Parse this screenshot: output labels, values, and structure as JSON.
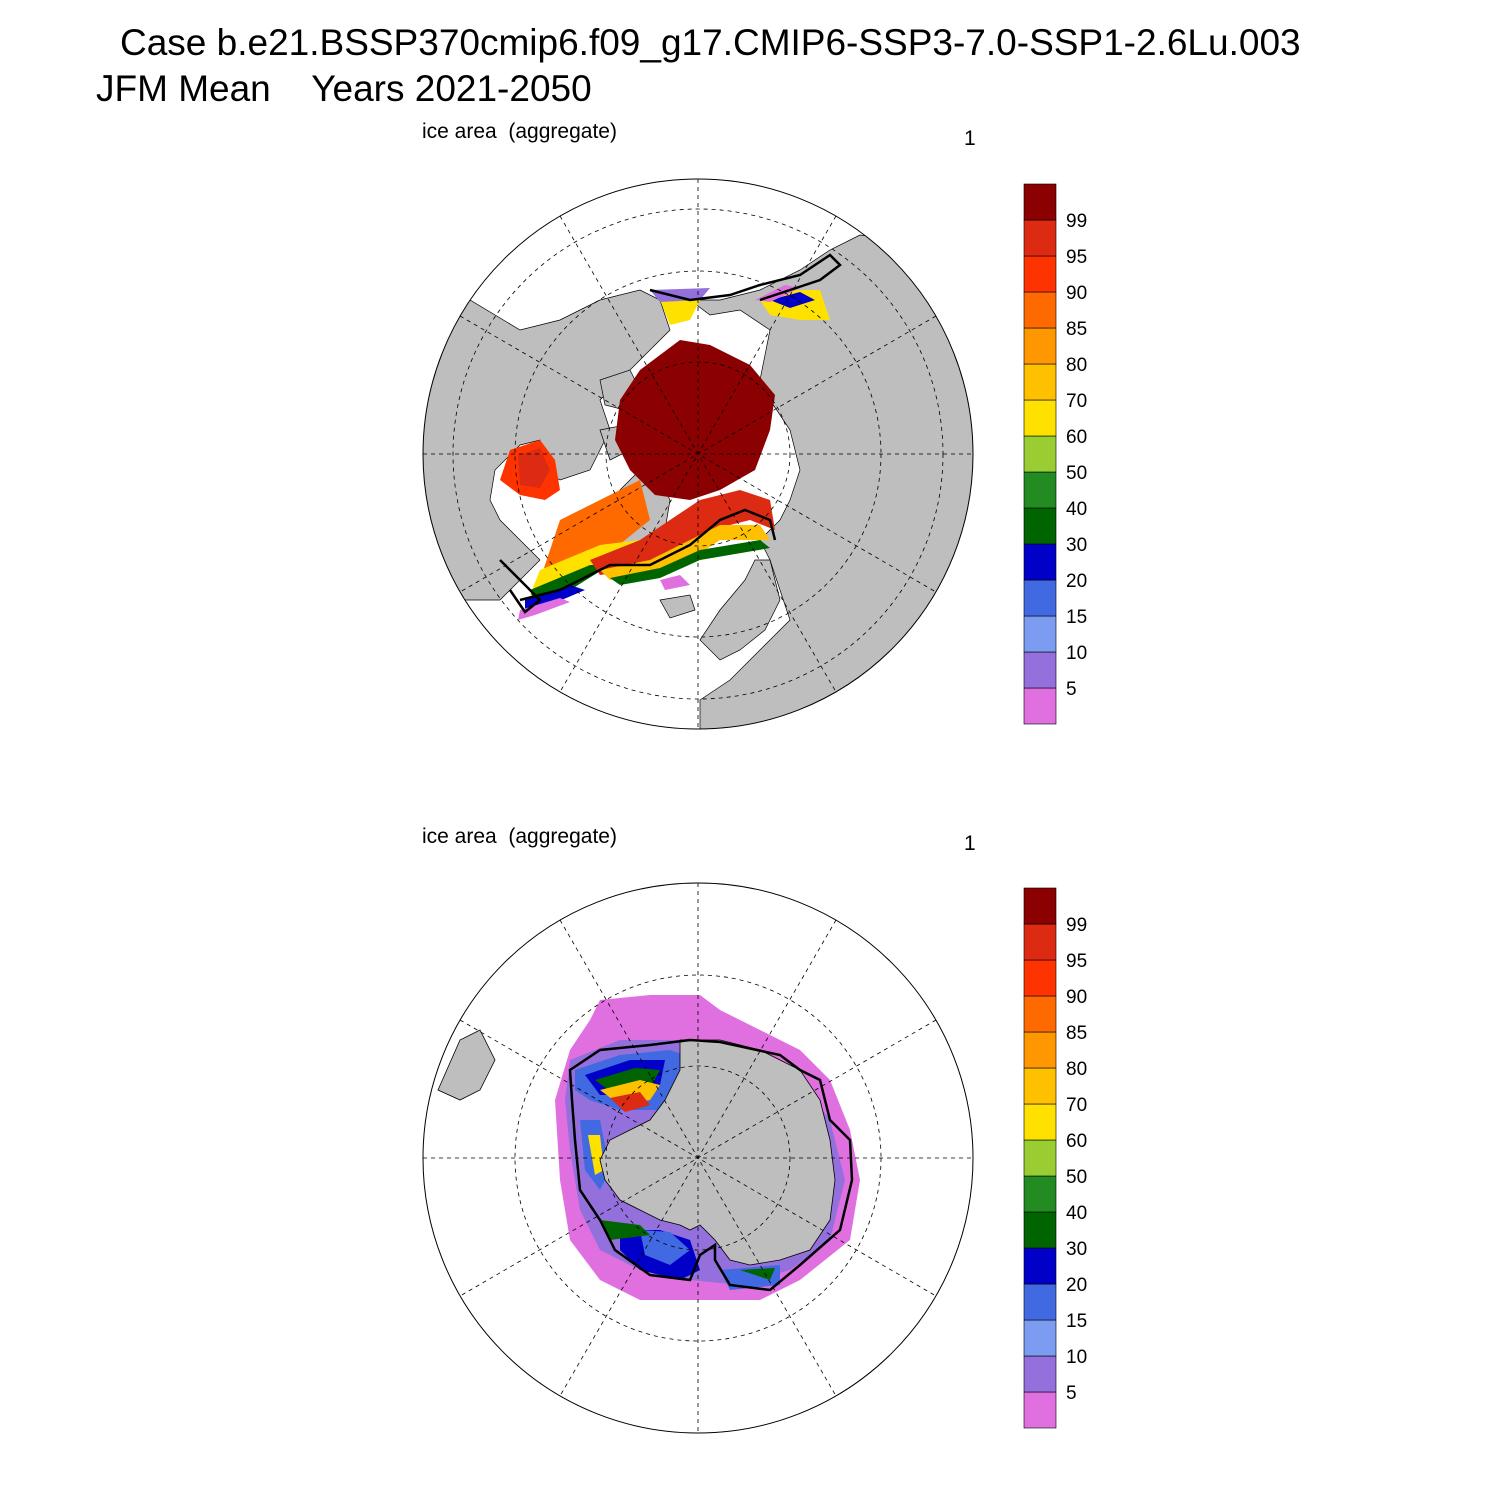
{
  "figure": {
    "title_case": "Case b.e21.BSSP370cmip6.f09_g17.CMIP6-SSP3-7.0-SSP1-2.6Lu.003",
    "title_period": "JFM Mean    Years 2021-2050"
  },
  "panels": [
    {
      "id": "north",
      "hemisphere": "Northern Hemisphere",
      "label": "ice area  (aggregate)",
      "number": "1"
    },
    {
      "id": "south",
      "hemisphere": "Southern Hemisphere",
      "label": "ice area  (aggregate)",
      "number": "1"
    }
  ],
  "colorbar": {
    "levels": [
      {
        "label": "5",
        "color": "#e070e0"
      },
      {
        "label": "10",
        "color": "#9370db"
      },
      {
        "label": "15",
        "color": "#7b9cf0"
      },
      {
        "label": "20",
        "color": "#4169e1"
      },
      {
        "label": "30",
        "color": "#0000c8"
      },
      {
        "label": "40",
        "color": "#006400"
      },
      {
        "label": "50",
        "color": "#228b22"
      },
      {
        "label": "60",
        "color": "#9acd32"
      },
      {
        "label": "70",
        "color": "#ffe100"
      },
      {
        "label": "80",
        "color": "#ffc000"
      },
      {
        "label": "85",
        "color": "#ff9800"
      },
      {
        "label": "90",
        "color": "#ff6a00"
      },
      {
        "label": "95",
        "color": "#ff3300"
      },
      {
        "label": "99",
        "color": "#dc2b12"
      },
      {
        "label": "",
        "color": "#8b0000"
      }
    ]
  },
  "colors": {
    "land": "#bebebe",
    "ocean": "#ffffff",
    "ice_edge": "#000000"
  }
}
